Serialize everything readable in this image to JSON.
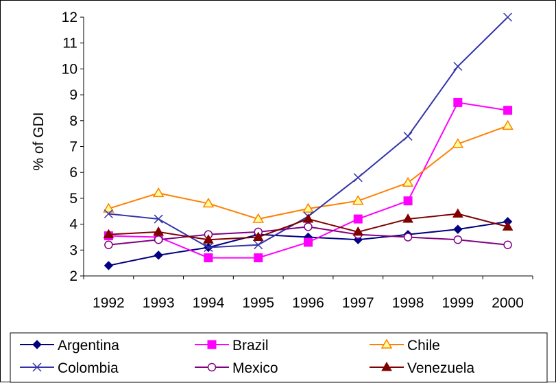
{
  "chart_data": {
    "type": "line",
    "title": "",
    "xlabel": "",
    "ylabel": "% of GDI",
    "ylim": [
      2,
      12
    ],
    "yticks": [
      2,
      3,
      4,
      5,
      6,
      7,
      8,
      9,
      10,
      11,
      12
    ],
    "grid": false,
    "legend_position": "bottom",
    "categories": [
      "1992",
      "1993",
      "1994",
      "1995",
      "1996",
      "1997",
      "1998",
      "1999",
      "2000"
    ],
    "series": [
      {
        "name": "Argentina",
        "color": "#000080",
        "marker": "diamond",
        "values": [
          2.4,
          2.8,
          3.1,
          3.6,
          3.5,
          3.4,
          3.6,
          3.8,
          4.1
        ]
      },
      {
        "name": "Brazil",
        "color": "#FF00FF",
        "marker": "square",
        "values": [
          3.55,
          3.5,
          2.7,
          2.7,
          3.3,
          4.2,
          4.9,
          8.7,
          8.4
        ]
      },
      {
        "name": "Chile",
        "color": "#FF8000",
        "marker": "triangle-open",
        "values": [
          4.6,
          5.2,
          4.8,
          4.2,
          4.6,
          4.9,
          5.6,
          7.1,
          7.8
        ]
      },
      {
        "name": "Colombia",
        "color": "#3333AA",
        "marker": "x",
        "values": [
          4.4,
          4.2,
          3.1,
          3.2,
          4.3,
          5.8,
          7.4,
          10.1,
          12.0
        ]
      },
      {
        "name": "Mexico",
        "color": "#800080",
        "marker": "circle-open",
        "values": [
          3.2,
          3.4,
          3.6,
          3.7,
          3.9,
          3.6,
          3.5,
          3.4,
          3.2
        ]
      },
      {
        "name": "Venezuela",
        "color": "#800000",
        "marker": "triangle",
        "values": [
          3.6,
          3.7,
          3.4,
          3.5,
          4.2,
          3.7,
          4.2,
          4.4,
          3.9
        ]
      }
    ]
  }
}
